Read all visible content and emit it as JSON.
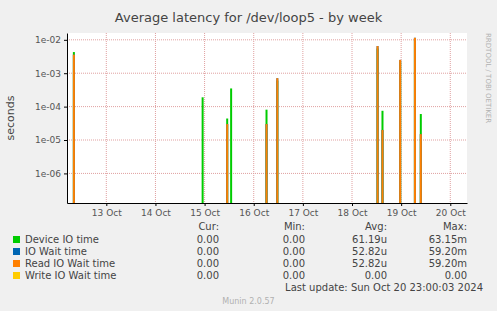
{
  "chart_data": {
    "type": "bar",
    "title": "Average latency for /dev/loop5 - by week",
    "y_label": "seconds",
    "log": "y",
    "grid": true,
    "legend": "bottom",
    "x": [
      12.34,
      14.96,
      15.46,
      15.54,
      16.26,
      16.48,
      18.52,
      18.62,
      18.98,
      19.28,
      19.4
    ],
    "xlim": [
      12.2,
      20.34
    ],
    "xticks": [
      {
        "value": 13,
        "label": "13 Oct"
      },
      {
        "value": 14,
        "label": "14 Oct"
      },
      {
        "value": 15,
        "label": "15 Oct"
      },
      {
        "value": 16,
        "label": "16 Oct"
      },
      {
        "value": 17,
        "label": "17 Oct"
      },
      {
        "value": 18,
        "label": "18 Oct"
      },
      {
        "value": 19,
        "label": "19 Oct"
      },
      {
        "value": 20,
        "label": "20 Oct"
      }
    ],
    "ylim": [
      1.3e-07,
      0.016
    ],
    "yticks": [
      {
        "value": 1e-06,
        "label": "1e-06"
      },
      {
        "value": 1e-05,
        "label": "1e-05"
      },
      {
        "value": 0.0001,
        "label": "1e-04"
      },
      {
        "value": 0.001,
        "label": "1e-03"
      },
      {
        "value": 0.01,
        "label": "1e-02"
      }
    ],
    "stats_header": [
      "Cur:",
      "Min:",
      "Avg:",
      "Max:"
    ],
    "series": [
      {
        "name": "Device IO time",
        "color": "#00cc00",
        "values": [
          0.0043,
          0.00019,
          4.4e-05,
          0.00035,
          8.1e-05,
          0.0006,
          0.0055,
          7.5e-05,
          0.0022,
          0.01,
          6e-05
        ],
        "cur": "0.00",
        "min": "0.00",
        "avg": "61.19u",
        "max": "63.15m"
      },
      {
        "name": "IO Wait time",
        "color": "#0066b3",
        "values": [
          0.0036,
          null,
          3e-05,
          null,
          3e-05,
          0.00071,
          0.0065,
          2e-05,
          0.0025,
          0.0115,
          1.5e-05
        ],
        "cur": "0.00",
        "min": "0.00",
        "avg": "52.82u",
        "max": "59.20m"
      },
      {
        "name": "Read IO Wait time",
        "color": "#ff8000",
        "values": [
          0.0036,
          null,
          3e-05,
          null,
          3e-05,
          0.00071,
          0.0065,
          2e-05,
          0.0025,
          0.0115,
          1.5e-05
        ],
        "cur": "0.00",
        "min": "0.00",
        "avg": "52.82u",
        "max": "59.20m"
      },
      {
        "name": "Write IO Wait time",
        "color": "#ffcc00",
        "values": [
          null,
          null,
          null,
          null,
          null,
          null,
          null,
          null,
          null,
          null,
          null
        ],
        "cur": "0.00",
        "min": "0.00",
        "avg": "0.00",
        "max": "0.00"
      }
    ],
    "last_update": "Last update: Sun Oct 20 23:00:03 2024",
    "footer": "Munin 2.0.57",
    "watermark": "RRDTOOL / TOBI OETIKER"
  }
}
